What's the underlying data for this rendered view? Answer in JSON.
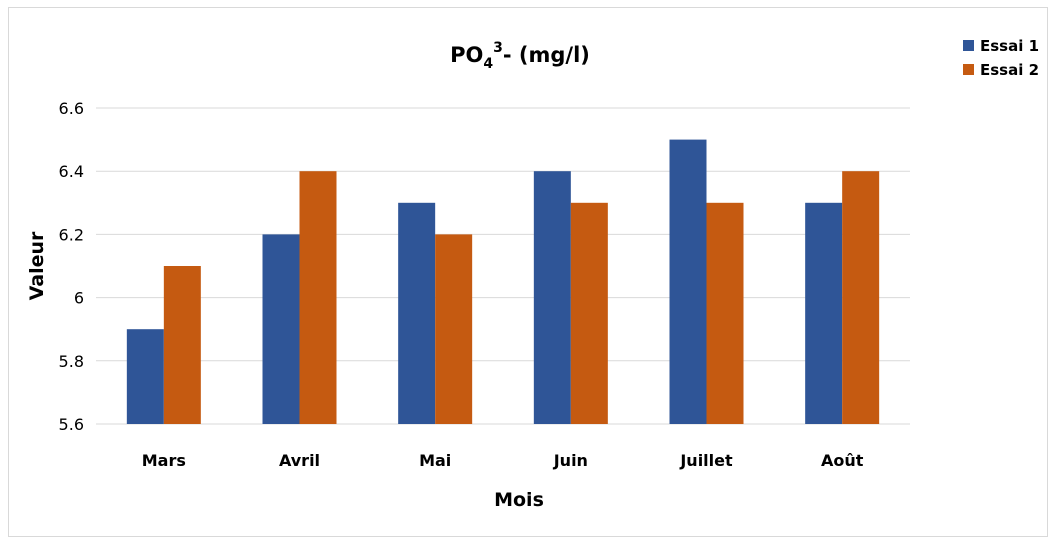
{
  "chart_data": {
    "type": "bar",
    "title": {
      "main": "PO",
      "sub": "4",
      "sup": "3",
      "rest": "- (mg/l)"
    },
    "xlabel": "Mois",
    "ylabel": "Valeur",
    "categories": [
      "Mars",
      "Avril",
      "Mai",
      "Juin",
      "Juillet",
      "Août"
    ],
    "series": [
      {
        "name": "Essai 1",
        "color": "#2F5597",
        "values": [
          5.9,
          6.2,
          6.3,
          6.4,
          6.5,
          6.3
        ]
      },
      {
        "name": "Essai 2",
        "color": "#C55A11",
        "values": [
          6.1,
          6.4,
          6.2,
          6.3,
          6.3,
          6.4
        ]
      }
    ],
    "ylim": [
      5.6,
      6.6
    ],
    "yticks": [
      "5.6",
      "5.8",
      "6",
      "6.2",
      "6.4",
      "6.6"
    ],
    "grid": true,
    "legend_position": "top-right"
  }
}
